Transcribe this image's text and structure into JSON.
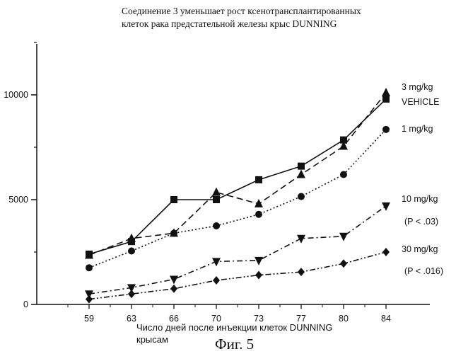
{
  "chart_data": {
    "type": "line",
    "title": "Соединение 3 уменьшает рост ксенотрансплантированных клеток рака предстательной железы крыс DUNNING",
    "title_lines": [
      "Соединение 3 уменьшает рост ксенотрансплантированных",
      "клеток рака предстательной железы крыс DUNNING"
    ],
    "xlabel_lines": [
      "Число дней после инъекции клеток DUNNING",
      "крысам"
    ],
    "figure_caption": "Фиг. 5",
    "ylabel": "",
    "categories": [
      "59",
      "63",
      "66",
      "70",
      "73",
      "77",
      "80",
      "84"
    ],
    "y_ticks": [
      0,
      5000,
      10000
    ],
    "y_tick_labels": [
      "0",
      "5000",
      "10000"
    ],
    "ylim": [
      0,
      12500
    ],
    "grid": false,
    "series": [
      {
        "name": "VEHICLE",
        "marker": "square",
        "dash": "solid",
        "values": [
          2400,
          3000,
          5000,
          5000,
          5950,
          6600,
          7850,
          9800
        ]
      },
      {
        "name": "3 mg/kg",
        "marker": "triangle-up",
        "dash": "dashed",
        "values": [
          2350,
          3150,
          3400,
          5350,
          4800,
          6200,
          7550,
          10100
        ]
      },
      {
        "name": "1 mg/kg",
        "marker": "circle",
        "dash": "dotted",
        "values": [
          1750,
          2550,
          3400,
          3750,
          4300,
          5150,
          6200,
          8350
        ]
      },
      {
        "name": "10 mg/kg",
        "marker": "triangle-down",
        "dash": "dashdot",
        "values": [
          500,
          800,
          1200,
          2050,
          2100,
          3150,
          3250,
          4700
        ]
      },
      {
        "name": "30 mg/kg",
        "marker": "diamond",
        "dash": "dashdotdot",
        "values": [
          250,
          500,
          750,
          1150,
          1400,
          1550,
          1950,
          2500
        ]
      }
    ],
    "legend": [
      {
        "key": "3mg",
        "label": "3 mg/kg",
        "note": ""
      },
      {
        "key": "vehicle",
        "label": "VEHICLE",
        "note": ""
      },
      {
        "key": "1mg",
        "label": "1 mg/kg",
        "note": ""
      },
      {
        "key": "10mg",
        "label": "10 mg/kg",
        "note": "(P < .03)"
      },
      {
        "key": "30mg",
        "label": "30 mg/kg",
        "note": "(P < .016)"
      }
    ],
    "legend_placement": "right, next to line ends",
    "colors": {
      "ink": "#111111",
      "background": "#ffffff"
    }
  }
}
